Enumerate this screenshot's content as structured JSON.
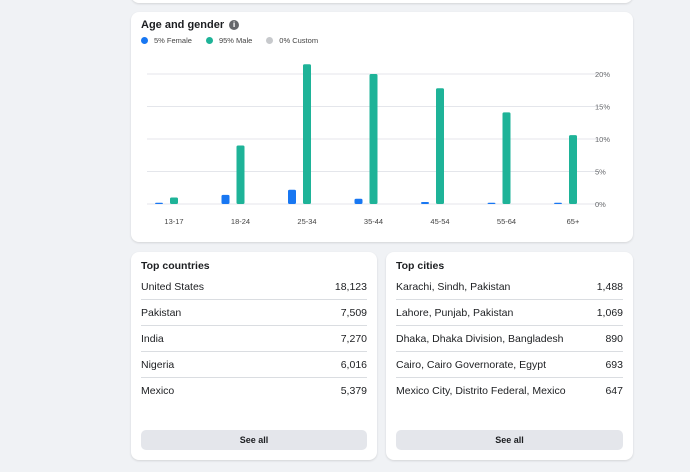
{
  "colors": {
    "female": "#1877f2",
    "male": "#1eb398",
    "custom": "#c7c9cc",
    "grid": "#e4e6eb"
  },
  "age_gender": {
    "title": "Age and gender",
    "info_icon": "info-icon",
    "legend": [
      {
        "label": "5% Female",
        "color": "#1877f2"
      },
      {
        "label": "95% Male",
        "color": "#1eb398"
      },
      {
        "label": "0% Custom",
        "color": "#c7c9cc"
      }
    ]
  },
  "chart_data": {
    "type": "bar",
    "title": "Age and gender",
    "categories": [
      "13-17",
      "18-24",
      "25-34",
      "35-44",
      "45-54",
      "55-64",
      "65+"
    ],
    "series": [
      {
        "name": "Female",
        "values": [
          0.1,
          1.4,
          2.2,
          0.8,
          0.3,
          0.2,
          0.2
        ]
      },
      {
        "name": "Male",
        "values": [
          1.0,
          9.0,
          21.5,
          20.0,
          17.8,
          14.1,
          10.6
        ]
      }
    ],
    "yticks": [
      "20%",
      "15%",
      "10%",
      "5%",
      "0%"
    ],
    "ylim": [
      0,
      22
    ],
    "grid": true,
    "yaxis_position": "right"
  },
  "top_countries": {
    "title": "Top countries",
    "rows": [
      {
        "name": "United States",
        "value": "18,123"
      },
      {
        "name": "Pakistan",
        "value": "7,509"
      },
      {
        "name": "India",
        "value": "7,270"
      },
      {
        "name": "Nigeria",
        "value": "6,016"
      },
      {
        "name": "Mexico",
        "value": "5,379"
      }
    ],
    "see_all": "See all"
  },
  "top_cities": {
    "title": "Top cities",
    "rows": [
      {
        "name": "Karachi, Sindh, Pakistan",
        "value": "1,488"
      },
      {
        "name": "Lahore, Punjab, Pakistan",
        "value": "1,069"
      },
      {
        "name": "Dhaka, Dhaka Division, Bangladesh",
        "value": "890"
      },
      {
        "name": "Cairo, Cairo Governorate, Egypt",
        "value": "693"
      },
      {
        "name": "Mexico City, Distrito Federal, Mexico",
        "value": "647"
      }
    ],
    "see_all": "See all"
  }
}
